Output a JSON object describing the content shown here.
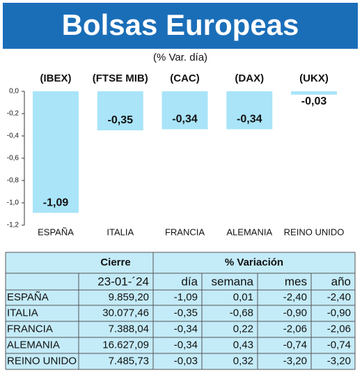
{
  "chart_data": {
    "type": "bar",
    "title": "Bolsas Europeas",
    "subtitle": "(% Var. día)",
    "categories": [
      "ESPAÑA",
      "ITALIA",
      "FRANCIA",
      "ALEMANIA",
      "REINO UNIDO"
    ],
    "index_labels": [
      "(IBEX)",
      "(FTSE MIB)",
      "(CAC)",
      "(DAX)",
      "(UKX)"
    ],
    "values": [
      -1.09,
      -0.35,
      -0.34,
      -0.34,
      -0.03
    ],
    "value_labels": [
      "-1,09",
      "-0,35",
      "-0,34",
      "-0,34",
      "-0,03"
    ],
    "color": "#a9e4f8",
    "ylim": [
      -1.2,
      0
    ],
    "yticks": [
      {
        "value": 0,
        "label": "0,0"
      },
      {
        "value": -0.2,
        "label": "-0,2"
      },
      {
        "value": -0.4,
        "label": "-0,4"
      },
      {
        "value": -0.6,
        "label": "-0,6"
      },
      {
        "value": -0.8,
        "label": "-0,8"
      },
      {
        "value": -1.0,
        "label": "-1,0"
      },
      {
        "value": -1.2,
        "label": "-1,2"
      }
    ]
  },
  "table": {
    "header": {
      "cierre": "Cierre",
      "variacion": "% Variación",
      "date": "23-01-´24"
    },
    "columns": [
      "día",
      "semana",
      "mes",
      "año"
    ],
    "rows": [
      [
        "ESPAÑA",
        "9.859,20",
        "-1,09",
        "0,01",
        "-2,40",
        "-2,40"
      ],
      [
        "ITALIA",
        "30.077,46",
        "-0,35",
        "-0,68",
        "-0,90",
        "-0,90"
      ],
      [
        "FRANCIA",
        "7.388,04",
        "-0,34",
        "0,22",
        "-2,06",
        "-2,06"
      ],
      [
        "ALEMANIA",
        "16.627,09",
        "-0,34",
        "0,43",
        "-0,74",
        "-0,74"
      ],
      [
        "REINO UNIDO",
        "7.485,73",
        "-0,03",
        "0,32",
        "-3,20",
        "-3,20"
      ]
    ]
  }
}
